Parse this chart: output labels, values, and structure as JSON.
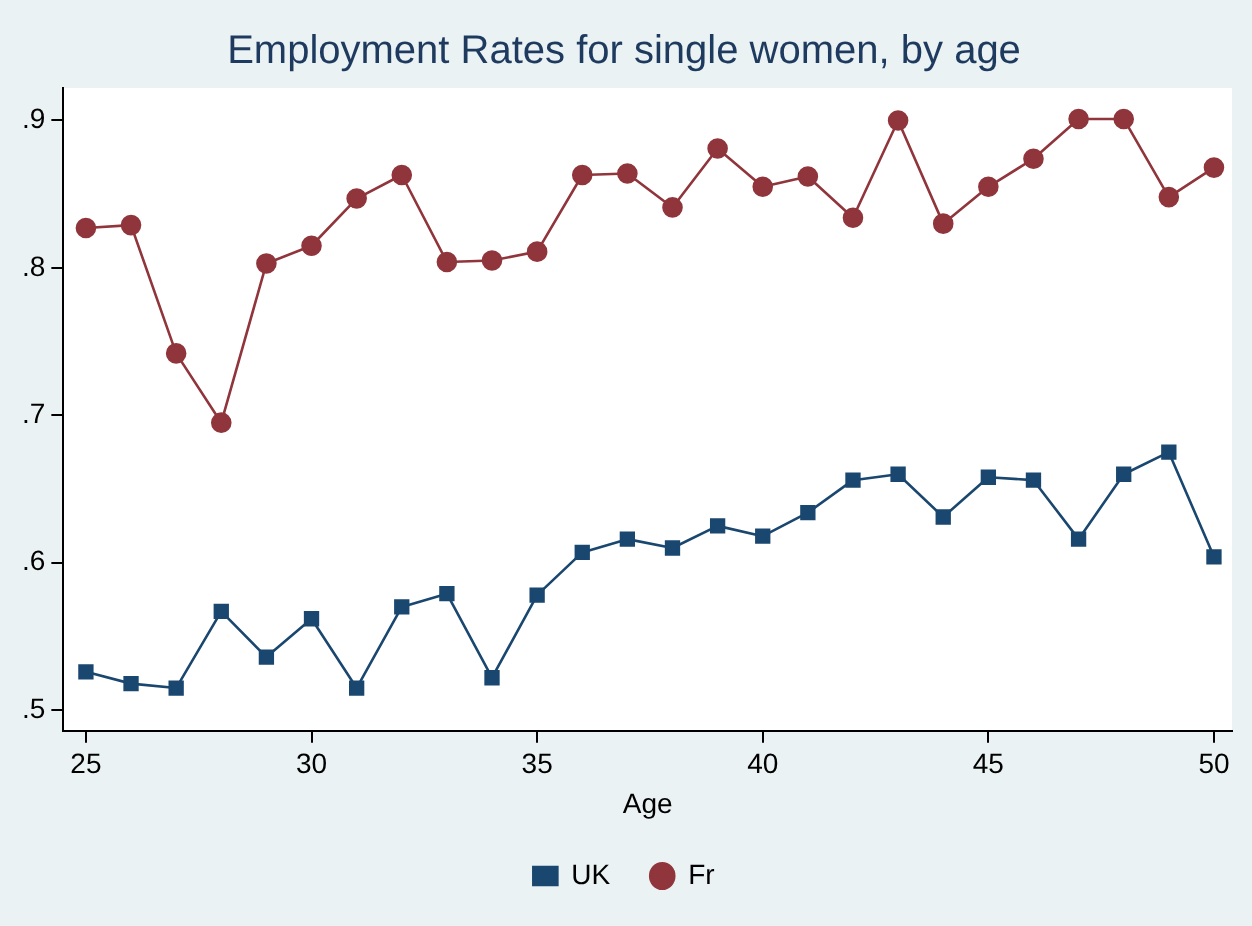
{
  "chart_data": {
    "type": "line",
    "title": "Employment Rates for single women, by age",
    "xlabel": "Age",
    "x": [
      25,
      26,
      27,
      28,
      29,
      30,
      31,
      32,
      33,
      34,
      35,
      36,
      37,
      38,
      39,
      40,
      41,
      42,
      43,
      44,
      45,
      46,
      47,
      48,
      49,
      50
    ],
    "series": [
      {
        "name": "UK",
        "color": "#1a476f",
        "marker": "square",
        "values": [
          0.526,
          0.518,
          0.515,
          0.567,
          0.536,
          0.562,
          0.515,
          0.57,
          0.579,
          0.522,
          0.578,
          0.607,
          0.616,
          0.61,
          0.625,
          0.618,
          0.634,
          0.656,
          0.66,
          0.631,
          0.658,
          0.656,
          0.616,
          0.66,
          0.675,
          0.604
        ]
      },
      {
        "name": "Fr",
        "color": "#90353b",
        "marker": "circle",
        "values": [
          0.827,
          0.829,
          0.742,
          0.695,
          0.803,
          0.815,
          0.847,
          0.863,
          0.804,
          0.805,
          0.811,
          0.863,
          0.864,
          0.841,
          0.881,
          0.855,
          0.862,
          0.834,
          0.9,
          0.83,
          0.855,
          0.874,
          0.901,
          0.901,
          0.848,
          0.868
        ]
      }
    ],
    "xlim": [
      24.5,
      50.4
    ],
    "xticks": [
      25,
      30,
      35,
      40,
      45,
      50
    ],
    "ylim": [
      0.486,
      0.922
    ],
    "yticks": [
      {
        "value": 0.5,
        "label": ".5"
      },
      {
        "value": 0.6,
        "label": ".6"
      },
      {
        "value": 0.7,
        "label": ".7"
      },
      {
        "value": 0.8,
        "label": ".8"
      },
      {
        "value": 0.9,
        "label": ".9"
      }
    ],
    "grid": false,
    "legend": "bottom",
    "line_style": "solid"
  }
}
